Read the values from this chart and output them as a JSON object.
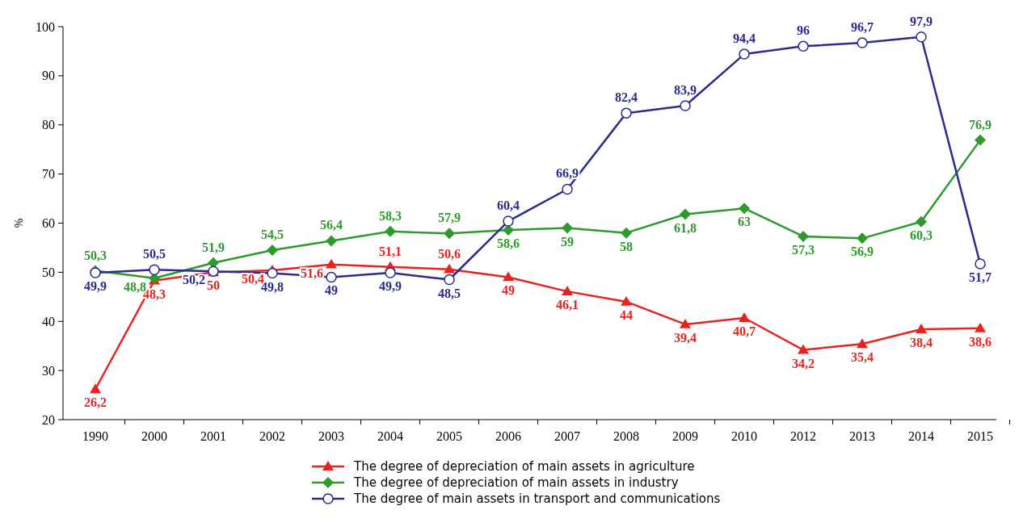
{
  "chart_data": {
    "type": "line",
    "ylabel": "%",
    "categories": [
      "1990",
      "2000",
      "2001",
      "2002",
      "2003",
      "2004",
      "2005",
      "2006",
      "2007",
      "2008",
      "2009",
      "2010",
      "2012",
      "2013",
      "2014",
      "2015"
    ],
    "ylim": [
      20,
      100
    ],
    "yticks": [
      20,
      30,
      40,
      50,
      60,
      70,
      80,
      90,
      100
    ],
    "grid": false,
    "legend": "bottom",
    "series": [
      {
        "name": "The degree of depreciation of main assets in agriculture",
        "color": "#e8231f",
        "marker": "triangle",
        "values": [
          26.2,
          48.3,
          50,
          50.4,
          51.6,
          51.1,
          50.6,
          49,
          46.1,
          44,
          39.4,
          40.7,
          34.2,
          35.4,
          38.4,
          38.6
        ],
        "value_labels": [
          "26,2",
          "48,3",
          "50",
          "50,4",
          "51,6",
          "51,1",
          "50,6",
          "49",
          "46,1",
          "44",
          "39,4",
          "40,7",
          "34,2",
          "35,4",
          "38,4",
          "38,6"
        ]
      },
      {
        "name": "The degree of depreciation of main assets in industry",
        "color": "#2e9a2e",
        "marker": "diamond",
        "values": [
          50.3,
          48.8,
          51.9,
          54.5,
          56.4,
          58.3,
          57.9,
          58.6,
          59,
          58,
          61.8,
          63,
          57.3,
          56.9,
          60.3,
          76.9
        ],
        "value_labels": [
          "50,3",
          "48,8",
          "51,9",
          "54,5",
          "56,4",
          "58,3",
          "57,9",
          "58,6",
          "59",
          "58",
          "61,8",
          "63",
          "57,3",
          "56,9",
          "60,3",
          "76,9"
        ]
      },
      {
        "name": "The degree of main assets in transport and communications",
        "color": "#2b2b8f",
        "marker": "circle",
        "values": [
          49.9,
          50.5,
          50.2,
          49.8,
          49,
          49.9,
          48.5,
          60.4,
          66.9,
          82.4,
          83.9,
          94.4,
          96,
          96.7,
          97.9,
          51.7
        ],
        "value_labels": [
          "49,9",
          "50,5",
          "50,2",
          "49,8",
          "49",
          "49,9",
          "48,5",
          "60,4",
          "66,9",
          "82,4",
          "83,9",
          "94,4",
          "96",
          "96,7",
          "97,9",
          "51,7"
        ]
      }
    ]
  }
}
